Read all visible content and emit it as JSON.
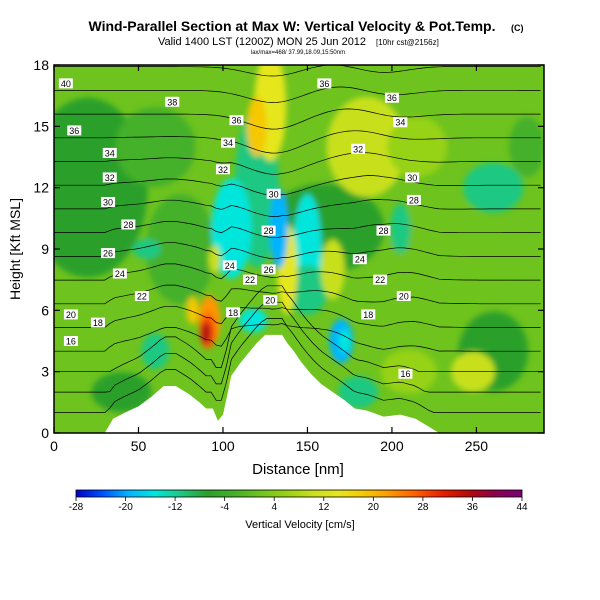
{
  "chart_data": {
    "type": "heatmap",
    "title": "Wind-Parallel Section at Max W: Vertical Velocity & Pot.Temp.",
    "title_mark": "(C)",
    "subtitle": "Valid 1400 LST (1200Z) MON 25 Jun 2012",
    "subtitle_tail": "[10hr cst@2156z]",
    "subtitle2": "lax/max=468/ 37.99,18.09,15:50nm",
    "xlabel": "Distance [nm]",
    "ylabel": "Height [Kft MSL]",
    "xlim": [
      0,
      290
    ],
    "ylim": [
      0,
      18
    ],
    "xticks": [
      0,
      50,
      100,
      150,
      200,
      250
    ],
    "yticks": [
      0,
      3,
      6,
      9,
      12,
      15,
      18
    ],
    "colorbar": {
      "label": "Vertical Velocity [cm/s]",
      "ticks": [
        -28,
        -20,
        -12,
        -4,
        4,
        12,
        20,
        28,
        36,
        44
      ],
      "range": [
        -28,
        44
      ],
      "colors": [
        "#0000c8",
        "#0050ff",
        "#00b4ff",
        "#00e6dc",
        "#1ec882",
        "#2ca02c",
        "#44b02a",
        "#6ec31e",
        "#96d214",
        "#c8e01e",
        "#e6e61e",
        "#f5c800",
        "#ff9600",
        "#ff5a00",
        "#e61e00",
        "#b40a0a",
        "#8c0050",
        "#780078"
      ]
    },
    "field_description": "Vertical velocity shaded; potential temperature contours in K",
    "theta_contours": [
      {
        "value": 16,
        "label": "16"
      },
      {
        "value": 18,
        "label": "18"
      },
      {
        "value": 20,
        "label": "20"
      },
      {
        "value": 22,
        "label": "22"
      },
      {
        "value": 24,
        "label": "24"
      },
      {
        "value": 26,
        "label": "26"
      },
      {
        "value": 28,
        "label": "28"
      },
      {
        "value": 30,
        "label": "30"
      },
      {
        "value": 32,
        "label": "32"
      },
      {
        "value": 34,
        "label": "34"
      },
      {
        "value": 36,
        "label": "36"
      },
      {
        "value": 38,
        "label": "38"
      },
      {
        "value": 40,
        "label": "40"
      }
    ],
    "contour_labels": [
      {
        "text": "40",
        "x": 7,
        "y": 17.1
      },
      {
        "text": "38",
        "x": 70,
        "y": 16.2
      },
      {
        "text": "36",
        "x": 160,
        "y": 17.1
      },
      {
        "text": "36",
        "x": 200,
        "y": 16.4
      },
      {
        "text": "36",
        "x": 12,
        "y": 14.8
      },
      {
        "text": "36",
        "x": 108,
        "y": 15.3
      },
      {
        "text": "34",
        "x": 205,
        "y": 15.2
      },
      {
        "text": "34",
        "x": 103,
        "y": 14.2
      },
      {
        "text": "34",
        "x": 33,
        "y": 13.7
      },
      {
        "text": "32",
        "x": 180,
        "y": 13.9
      },
      {
        "text": "32",
        "x": 33,
        "y": 12.5
      },
      {
        "text": "32",
        "x": 100,
        "y": 12.9
      },
      {
        "text": "30",
        "x": 212,
        "y": 12.5
      },
      {
        "text": "30",
        "x": 130,
        "y": 11.7
      },
      {
        "text": "30",
        "x": 32,
        "y": 11.3
      },
      {
        "text": "28",
        "x": 213,
        "y": 11.4
      },
      {
        "text": "28",
        "x": 44,
        "y": 10.2
      },
      {
        "text": "28",
        "x": 127,
        "y": 9.9
      },
      {
        "text": "28",
        "x": 195,
        "y": 9.9
      },
      {
        "text": "26",
        "x": 32,
        "y": 8.8
      },
      {
        "text": "26",
        "x": 127,
        "y": 8.0
      },
      {
        "text": "24",
        "x": 104,
        "y": 8.2
      },
      {
        "text": "24",
        "x": 39,
        "y": 7.8
      },
      {
        "text": "24",
        "x": 181,
        "y": 8.5
      },
      {
        "text": "22",
        "x": 52,
        "y": 6.7
      },
      {
        "text": "22",
        "x": 116,
        "y": 7.5
      },
      {
        "text": "22",
        "x": 193,
        "y": 7.5
      },
      {
        "text": "20",
        "x": 10,
        "y": 5.8
      },
      {
        "text": "20",
        "x": 128,
        "y": 6.5
      },
      {
        "text": "20",
        "x": 207,
        "y": 6.7
      },
      {
        "text": "18",
        "x": 26,
        "y": 5.4
      },
      {
        "text": "18",
        "x": 106,
        "y": 5.9
      },
      {
        "text": "18",
        "x": 186,
        "y": 5.8
      },
      {
        "text": "16",
        "x": 10,
        "y": 4.5
      },
      {
        "text": "16",
        "x": 208,
        "y": 2.9
      }
    ],
    "terrain": [
      [
        0,
        0
      ],
      [
        30,
        0
      ],
      [
        35,
        0.7
      ],
      [
        42,
        1.0
      ],
      [
        50,
        1.3
      ],
      [
        58,
        1.8
      ],
      [
        65,
        2.3
      ],
      [
        72,
        2.3
      ],
      [
        80,
        1.9
      ],
      [
        86,
        1.5
      ],
      [
        90,
        1.2
      ],
      [
        94,
        1.2
      ],
      [
        97,
        0.6
      ],
      [
        100,
        0.9
      ],
      [
        105,
        2.8
      ],
      [
        110,
        3.4
      ],
      [
        115,
        3.9
      ],
      [
        120,
        4.4
      ],
      [
        125,
        4.8
      ],
      [
        130,
        4.8
      ],
      [
        135,
        4.8
      ],
      [
        138,
        4.4
      ],
      [
        142,
        4.0
      ],
      [
        146,
        3.5
      ],
      [
        152,
        2.9
      ],
      [
        158,
        2.4
      ],
      [
        165,
        2.0
      ],
      [
        172,
        1.6
      ],
      [
        178,
        1.2
      ],
      [
        185,
        1.1
      ],
      [
        195,
        0.8
      ],
      [
        205,
        0.9
      ],
      [
        214,
        0.7
      ],
      [
        222,
        0.3
      ],
      [
        228,
        0
      ],
      [
        290,
        0
      ]
    ]
  }
}
